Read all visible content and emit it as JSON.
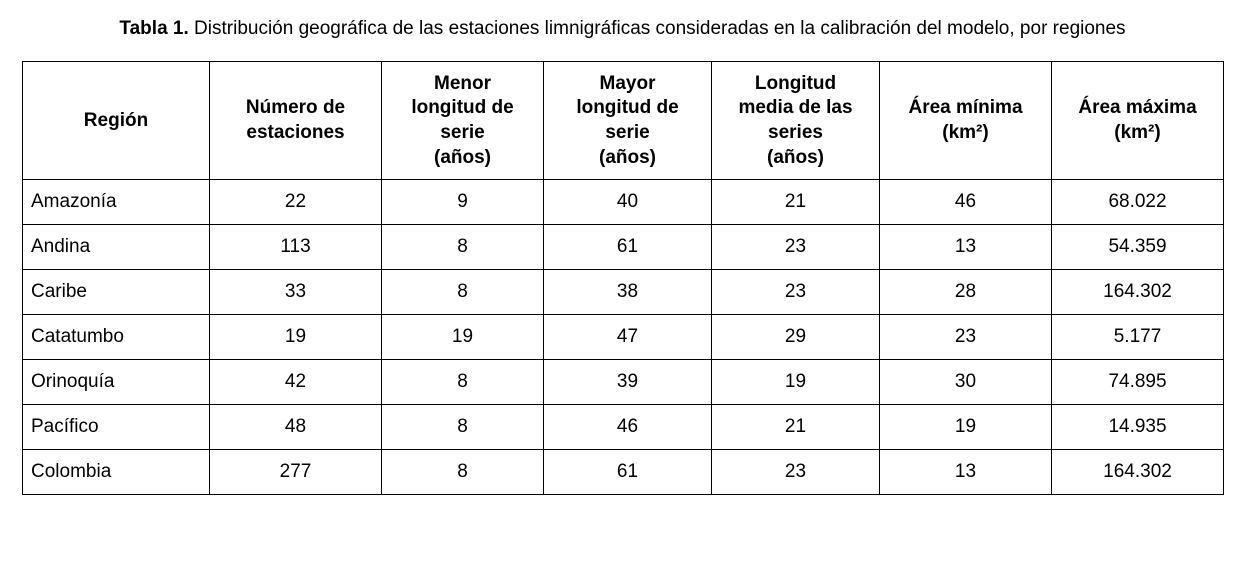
{
  "caption": {
    "label": "Tabla 1.",
    "text": " Distribución geográfica de las estaciones limnigráficas consideradas en la calibración del modelo, por regiones"
  },
  "table": {
    "headers": [
      "Región",
      "Número de\nestaciones",
      "Menor\nlongitud de\nserie\n(años)",
      "Mayor\nlongitud de\nserie\n(años)",
      "Longitud\nmedia de las\nseries\n(años)",
      "Área mínima\n(km²)",
      "Área máxima\n(km²)"
    ],
    "rows": [
      [
        "Amazonía",
        "22",
        "9",
        "40",
        "21",
        "46",
        "68.022"
      ],
      [
        "Andina",
        "113",
        "8",
        "61",
        "23",
        "13",
        "54.359"
      ],
      [
        "Caribe",
        "33",
        "8",
        "38",
        "23",
        "28",
        "164.302"
      ],
      [
        "Catatumbo",
        "19",
        "19",
        "47",
        "29",
        "23",
        "5.177"
      ],
      [
        "Orinoquía",
        "42",
        "8",
        "39",
        "19",
        "30",
        "74.895"
      ],
      [
        "Pacífico",
        "48",
        "8",
        "46",
        "21",
        "19",
        "14.935"
      ],
      [
        "Colombia",
        "277",
        "8",
        "61",
        "23",
        "13",
        "164.302"
      ]
    ]
  }
}
